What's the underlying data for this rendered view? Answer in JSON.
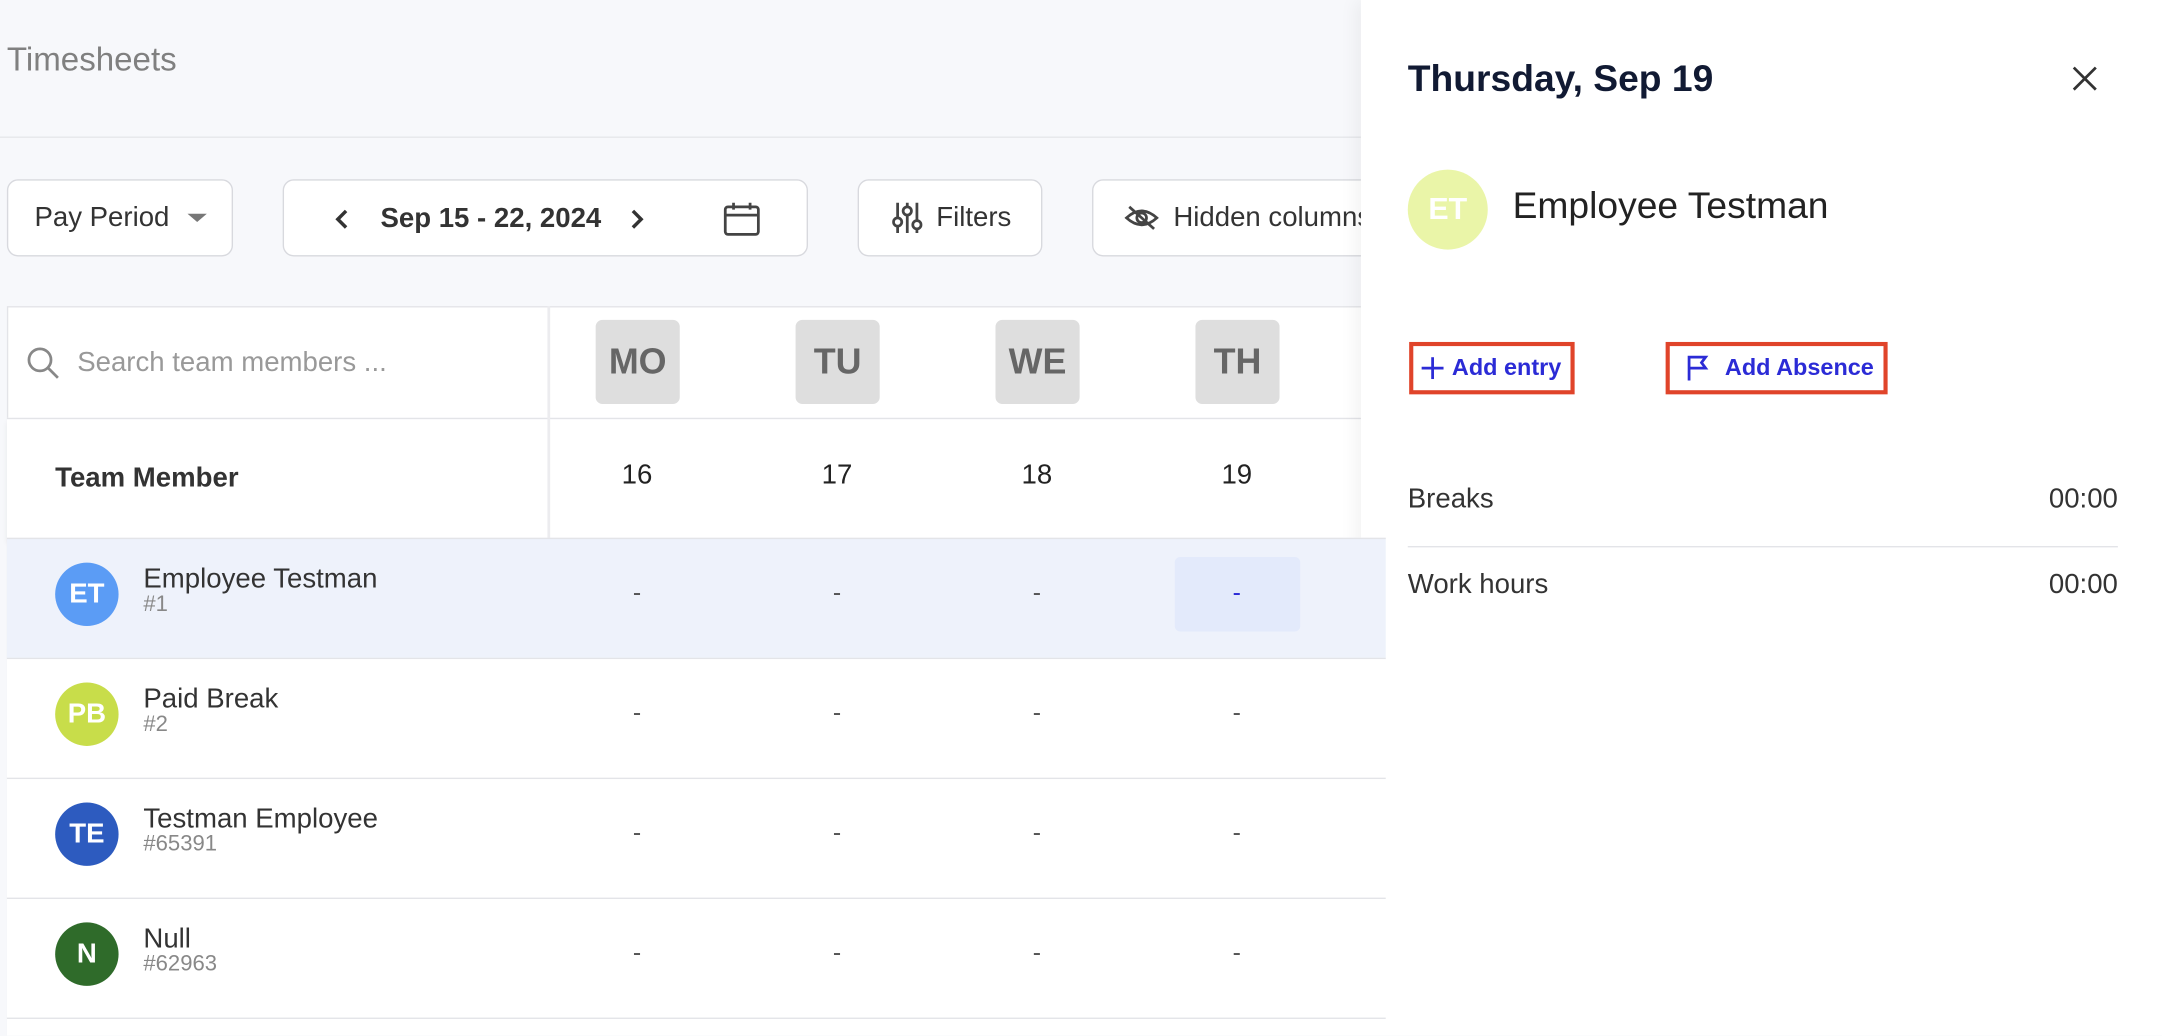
{
  "header": {
    "title": "Timesheets"
  },
  "toolbar": {
    "pay_period": "Pay Period",
    "date_range": "Sep 15 - 22, 2024",
    "filters": "Filters",
    "hidden_columns": "Hidden columns"
  },
  "table": {
    "search_placeholder": "Search team members ...",
    "days": [
      "MO",
      "TU",
      "WE",
      "TH"
    ],
    "dates": [
      16,
      17,
      18,
      19
    ],
    "member_header": "Team Member",
    "rows": [
      {
        "initials": "ET",
        "name": "Employee Testman",
        "id": "#1",
        "cells": [
          "-",
          "-",
          "-",
          "-"
        ]
      },
      {
        "initials": "PB",
        "name": "Paid Break",
        "id": "#2",
        "cells": [
          "-",
          "-",
          "-",
          "-"
        ]
      },
      {
        "initials": "TE",
        "name": "Testman Employee",
        "id": "#65391",
        "cells": [
          "-",
          "-",
          "-",
          "-"
        ]
      },
      {
        "initials": "N",
        "name": "Null",
        "id": "#62963",
        "cells": [
          "-",
          "-",
          "-",
          "-"
        ]
      }
    ]
  },
  "panel": {
    "title": "Thursday, Sep 19",
    "employee": {
      "initials": "ET",
      "name": "Employee Testman"
    },
    "actions": [
      "Add entry",
      "Add Absence"
    ],
    "summary": [
      {
        "label": "Breaks",
        "value": "00:00"
      },
      {
        "label": "Work hours",
        "value": "00:00"
      }
    ]
  }
}
